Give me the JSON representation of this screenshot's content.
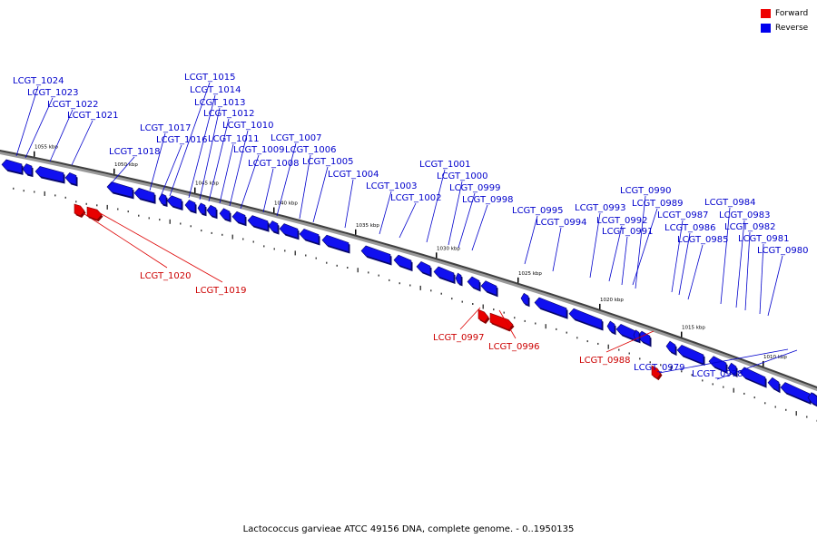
{
  "legend": {
    "forward": {
      "label": "Forward",
      "color": "#ee0000"
    },
    "reverse": {
      "label": "Reverse",
      "color": "#0000ee"
    }
  },
  "caption": "Lactococcus garvieae ATCC 49156 DNA, complete genome. - 0..1950135",
  "ruler_labels": [
    "1055 kbp",
    "1050 kbp",
    "1045 kbp",
    "1040 kbp",
    "1035 kbp",
    "1030 kbp",
    "1025 kbp",
    "1020 kbp",
    "1015 kbp",
    "1010 kbp"
  ],
  "genes": [
    {
      "name": "LCGT_1024",
      "strand": "reverse"
    },
    {
      "name": "LCGT_1023",
      "strand": "reverse"
    },
    {
      "name": "LCGT_1022",
      "strand": "reverse"
    },
    {
      "name": "LCGT_1021",
      "strand": "reverse"
    },
    {
      "name": "LCGT_1020",
      "strand": "forward"
    },
    {
      "name": "LCGT_1019",
      "strand": "forward"
    },
    {
      "name": "LCGT_1018",
      "strand": "reverse"
    },
    {
      "name": "LCGT_1017",
      "strand": "reverse"
    },
    {
      "name": "LCGT_1016",
      "strand": "reverse"
    },
    {
      "name": "LCGT_1015",
      "strand": "reverse"
    },
    {
      "name": "LCGT_1014",
      "strand": "reverse"
    },
    {
      "name": "LCGT_1013",
      "strand": "reverse"
    },
    {
      "name": "LCGT_1012",
      "strand": "reverse"
    },
    {
      "name": "LCGT_1011",
      "strand": "reverse"
    },
    {
      "name": "LCGT_1010",
      "strand": "reverse"
    },
    {
      "name": "LCGT_1009",
      "strand": "reverse"
    },
    {
      "name": "LCGT_1008",
      "strand": "reverse"
    },
    {
      "name": "LCGT_1007",
      "strand": "reverse"
    },
    {
      "name": "LCGT_1006",
      "strand": "reverse"
    },
    {
      "name": "LCGT_1005",
      "strand": "reverse"
    },
    {
      "name": "LCGT_1004",
      "strand": "reverse"
    },
    {
      "name": "LCGT_1003",
      "strand": "reverse"
    },
    {
      "name": "LCGT_1002",
      "strand": "reverse"
    },
    {
      "name": "LCGT_1001",
      "strand": "reverse"
    },
    {
      "name": "LCGT_1000",
      "strand": "reverse"
    },
    {
      "name": "LCGT_0999",
      "strand": "reverse"
    },
    {
      "name": "LCGT_0998",
      "strand": "reverse"
    },
    {
      "name": "LCGT_0997",
      "strand": "forward"
    },
    {
      "name": "LCGT_0996",
      "strand": "forward"
    },
    {
      "name": "LCGT_0995",
      "strand": "reverse"
    },
    {
      "name": "LCGT_0994",
      "strand": "reverse"
    },
    {
      "name": "LCGT_0993",
      "strand": "reverse"
    },
    {
      "name": "LCGT_0992",
      "strand": "reverse"
    },
    {
      "name": "LCGT_0991",
      "strand": "reverse"
    },
    {
      "name": "LCGT_0990",
      "strand": "reverse"
    },
    {
      "name": "LCGT_0989",
      "strand": "reverse"
    },
    {
      "name": "LCGT_0988",
      "strand": "forward"
    },
    {
      "name": "LCGT_0987",
      "strand": "reverse"
    },
    {
      "name": "LCGT_0986",
      "strand": "reverse"
    },
    {
      "name": "LCGT_0985",
      "strand": "reverse"
    },
    {
      "name": "LCGT_0984",
      "strand": "reverse"
    },
    {
      "name": "LCGT_0983",
      "strand": "reverse"
    },
    {
      "name": "LCGT_0982",
      "strand": "reverse"
    },
    {
      "name": "LCGT_0981",
      "strand": "reverse"
    },
    {
      "name": "LCGT_0980",
      "strand": "reverse"
    },
    {
      "name": "LCGT_0979",
      "strand": "reverse"
    },
    {
      "name": "LCGT_0978",
      "strand": "reverse"
    }
  ]
}
